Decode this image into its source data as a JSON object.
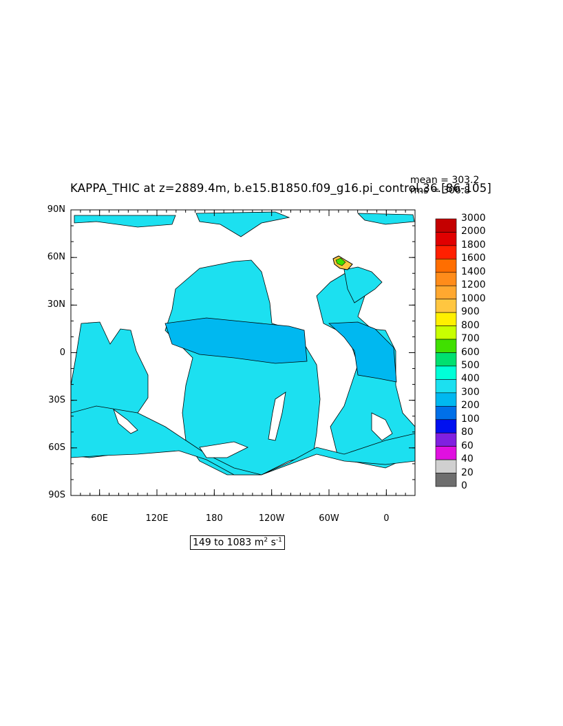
{
  "chart_data": {
    "type": "heatmap",
    "title": "KAPPA_THIC at z=2889.4m, b.e15.B1850.f09_g16.pi_control.36.[86-105]",
    "annotations": {
      "mean": "mean = 303.2",
      "rms": "rms = 306.8"
    },
    "range_label": "149 to 1083",
    "range_units": "m",
    "range_units_exp1": "2",
    "range_units_s": "s",
    "range_units_exp2": "-1",
    "y_ticks": [
      "90N",
      "60N",
      "30N",
      "0",
      "30S",
      "60S",
      "90S"
    ],
    "x_ticks": [
      "60E",
      "120E",
      "180",
      "120W",
      "60W",
      "0"
    ],
    "x_tick_lon": [
      60,
      120,
      180,
      240,
      300,
      360
    ],
    "lon_range": [
      30,
      390
    ],
    "lat_range": [
      -90,
      90
    ],
    "colorbar_levels": [
      "3000",
      "2000",
      "1800",
      "1600",
      "1400",
      "1200",
      "1000",
      "900",
      "800",
      "700",
      "600",
      "500",
      "400",
      "300",
      "200",
      "100",
      "80",
      "60",
      "40",
      "20",
      "0"
    ],
    "colorbar_colors": [
      "#c40000",
      "#e00000",
      "#ff2000",
      "#ff6e00",
      "#ff8c1a",
      "#ffa830",
      "#ffc640",
      "#fff000",
      "#c8ff00",
      "#40e000",
      "#00e070",
      "#00ffd8",
      "#1ce0f0",
      "#00b8f0",
      "#0070e8",
      "#0010f0",
      "#8020e0",
      "#e010e0",
      "#d0d0d0",
      "#6e6e6e"
    ],
    "ocean_colors": {
      "main": "#1ce0f0",
      "band": "#00b8f0"
    }
  }
}
